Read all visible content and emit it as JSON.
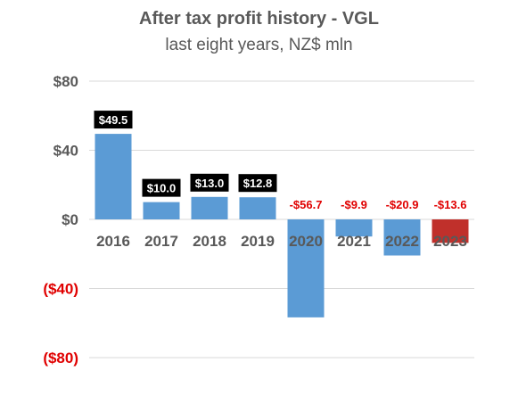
{
  "chart_data": {
    "type": "bar",
    "title": "After tax profit history - VGL",
    "subtitle": "last eight years, NZ$ mln",
    "categories": [
      "2016",
      "2017",
      "2018",
      "2019",
      "2020",
      "2021",
      "2022",
      "2023"
    ],
    "values": [
      49.5,
      10.0,
      13.0,
      12.8,
      -56.7,
      -9.9,
      -20.9,
      -13.6
    ],
    "data_labels": [
      "$49.5",
      "$10.0",
      "$13.0",
      "$12.8",
      "-$56.7",
      "-$9.9",
      "-$20.9",
      "-$13.6"
    ],
    "ylim": [
      -80,
      80
    ],
    "yticks": [
      80,
      40,
      0,
      -40,
      -80
    ],
    "ytick_labels": [
      "$80",
      "$40",
      "$0",
      "($40)",
      "($80)"
    ],
    "grid": true,
    "colors": {
      "positive_bar": "#5b9bd5",
      "negative_bar": "#5b9bd5",
      "last_bar": "#c0302b",
      "positive_label_bg": "#000000",
      "positive_label_text": "#ffffff",
      "negative_label_text": "#e00000",
      "positive_tick": "#595959",
      "negative_tick": "#e00000"
    }
  }
}
